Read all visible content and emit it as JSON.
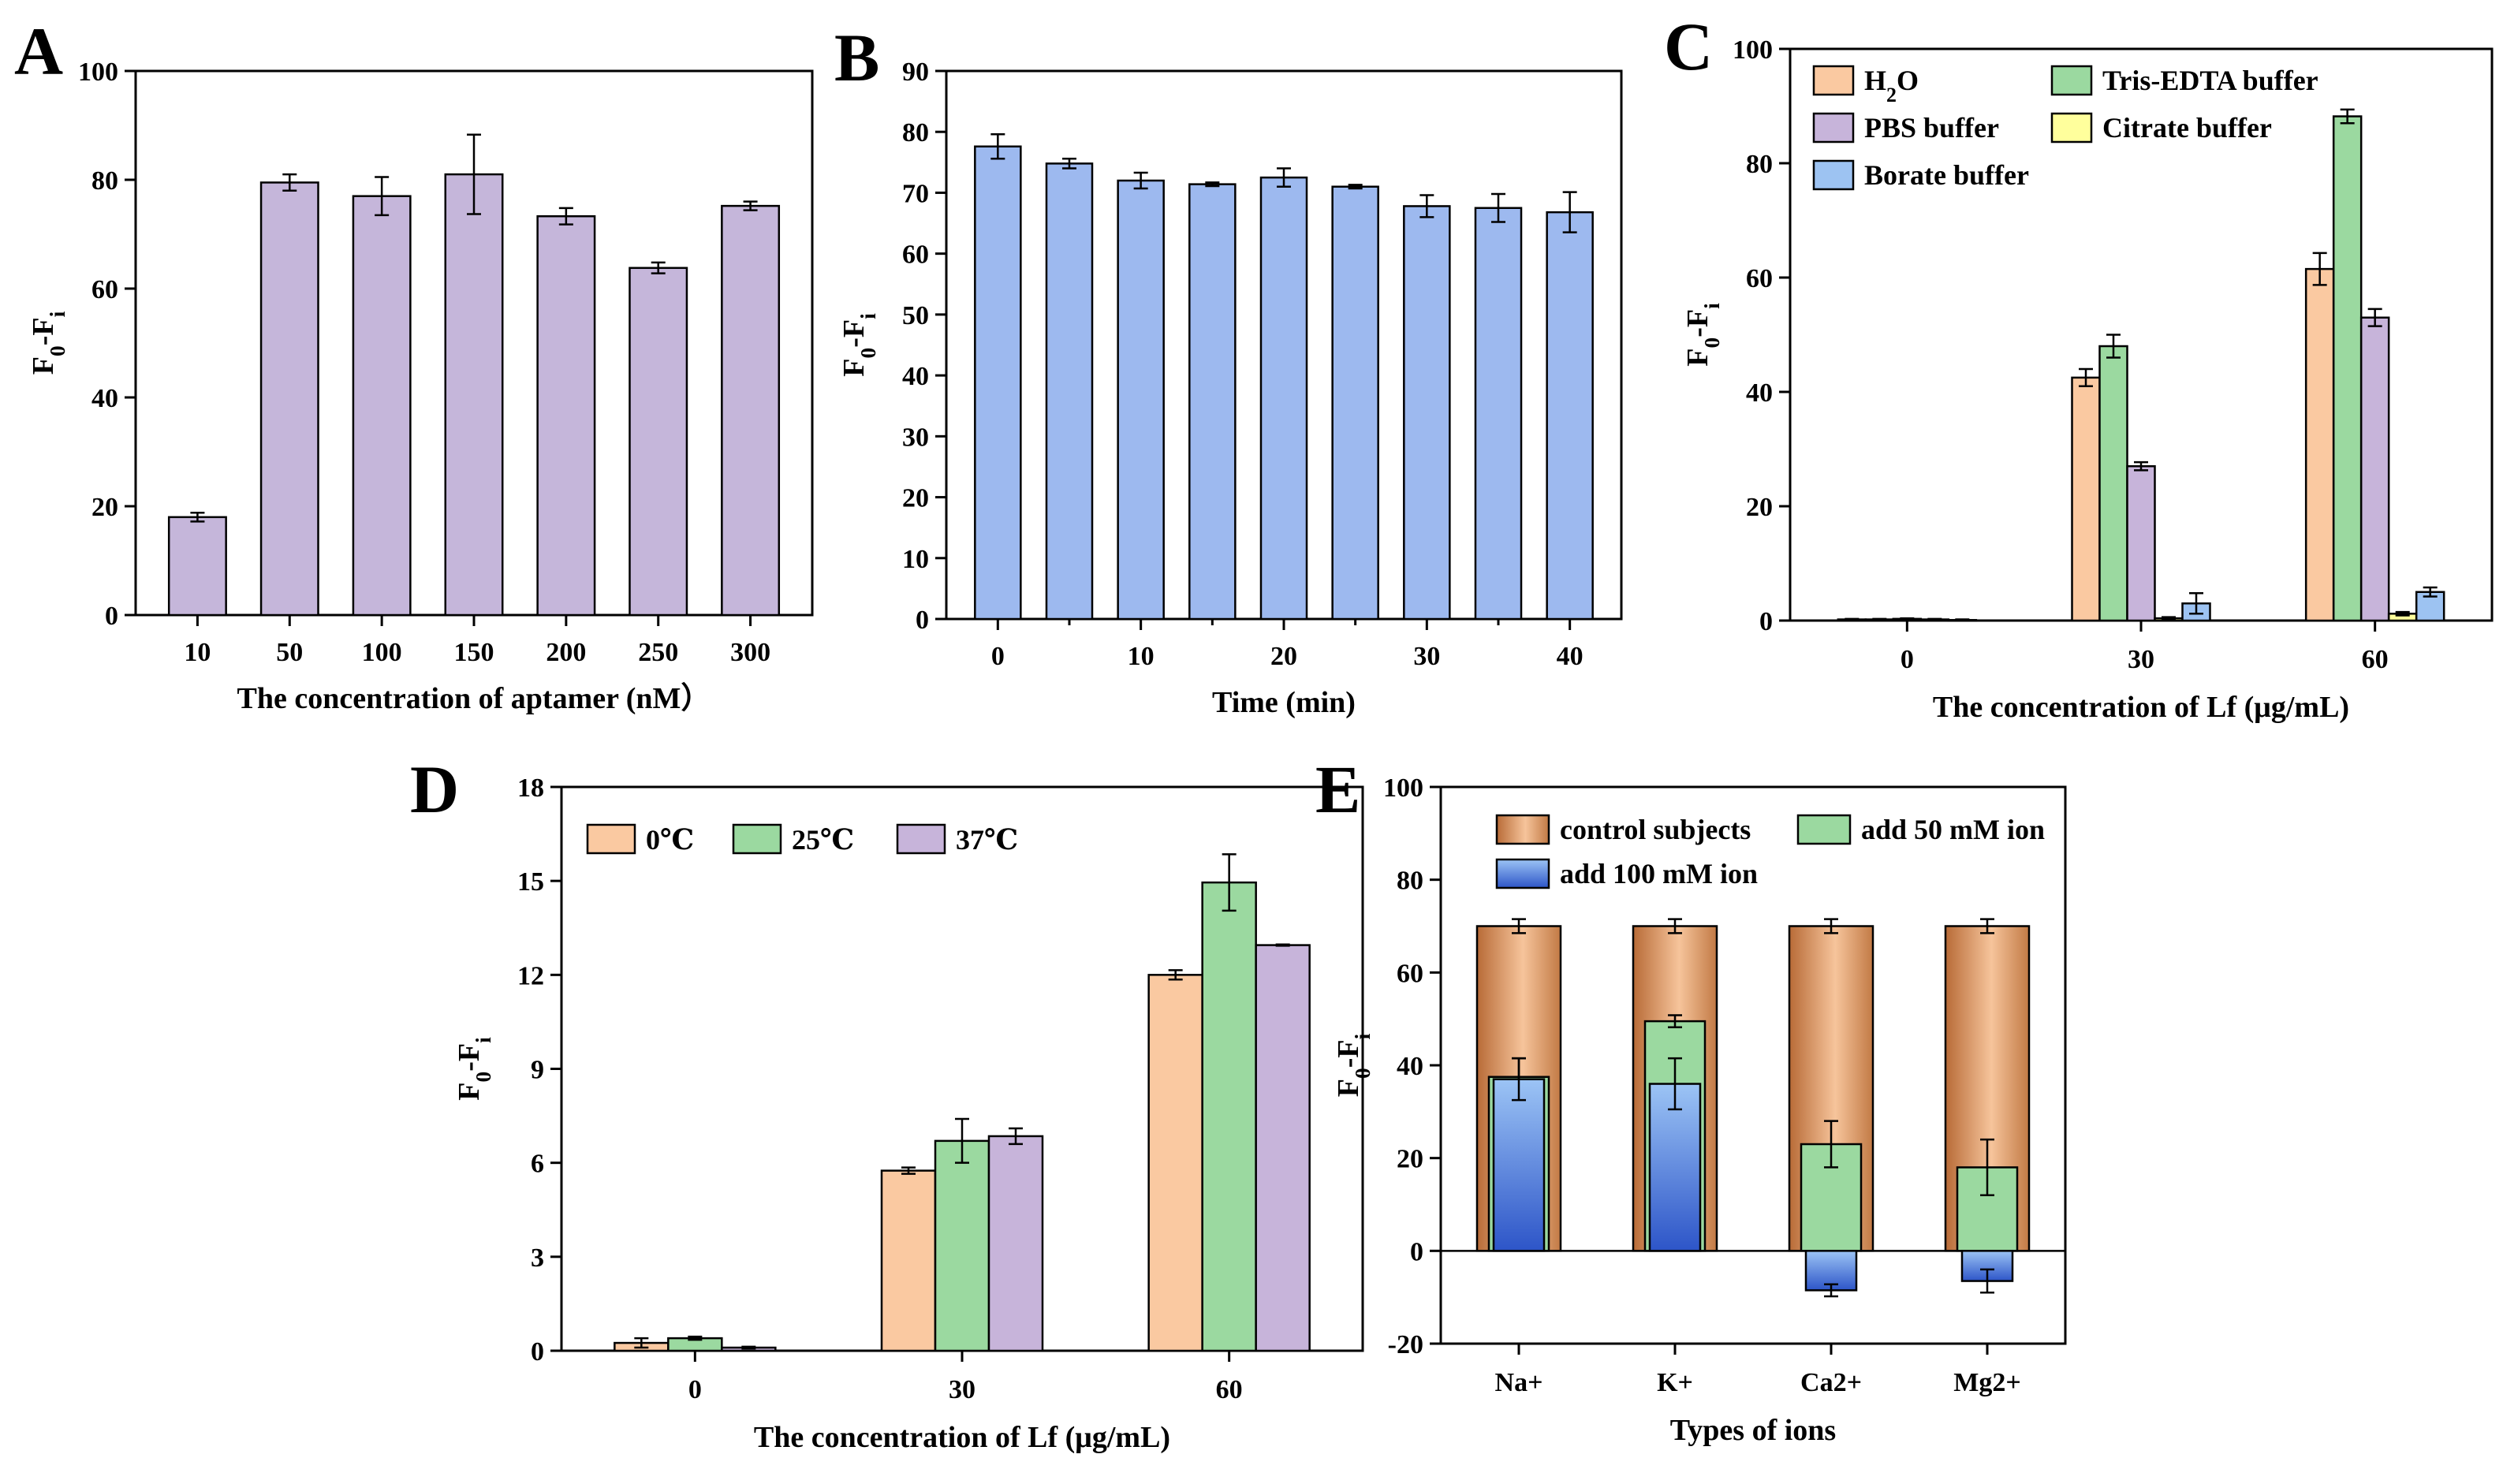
{
  "chart_data": [
    {
      "panel": "A",
      "type": "bar",
      "categories": [
        "10",
        "50",
        "100",
        "150",
        "200",
        "250",
        "300"
      ],
      "series": [
        {
          "name": "aptamer",
          "color": "#c5b6da",
          "values": [
            18,
            79.5,
            77,
            81,
            73.3,
            63.8,
            75.2
          ],
          "errors": [
            0.8,
            1.5,
            3.5,
            7.3,
            1.5,
            1.0,
            0.8
          ]
        }
      ],
      "xlabel": "The concentration of aptamer (nM）",
      "ylabel": "F0-Fi",
      "ylim": [
        0,
        100
      ],
      "yticks": [
        0,
        20,
        40,
        60,
        80,
        100
      ]
    },
    {
      "panel": "B",
      "type": "bar",
      "x": [
        0,
        5,
        10,
        15,
        20,
        25,
        30,
        35,
        40
      ],
      "series": [
        {
          "name": "time",
          "color": "#9db9ef",
          "values": [
            77.6,
            74.8,
            72.0,
            71.4,
            72.5,
            71.0,
            67.8,
            67.5,
            66.8
          ],
          "errors": [
            2.0,
            0.8,
            1.3,
            0.3,
            1.5,
            0.3,
            1.8,
            2.3,
            3.3
          ]
        }
      ],
      "xticks": [
        0,
        10,
        20,
        30,
        40
      ],
      "xlabel": "Time (min)",
      "ylabel": "F0-Fi",
      "ylim": [
        0,
        90
      ],
      "yticks": [
        0,
        10,
        20,
        30,
        40,
        50,
        60,
        70,
        80,
        90
      ]
    },
    {
      "panel": "C",
      "type": "bar",
      "categories": [
        "0",
        "30",
        "60"
      ],
      "series": [
        {
          "name": "H2O",
          "color": "#fac9a1",
          "values": [
            0.2,
            42.5,
            61.5
          ],
          "errors": [
            0.1,
            1.5,
            2.8
          ]
        },
        {
          "name": "Tris-EDTA buffer",
          "color": "#9bd9a0",
          "values": [
            0.2,
            48,
            88.2
          ],
          "errors": [
            0.1,
            2.0,
            1.2
          ]
        },
        {
          "name": "PBS buffer",
          "color": "#c7b4da",
          "values": [
            0.3,
            27,
            53
          ],
          "errors": [
            0.1,
            0.7,
            1.5
          ]
        },
        {
          "name": "Citrate buffer",
          "color": "#ffff9c",
          "values": [
            0.2,
            0.4,
            1.2
          ],
          "errors": [
            0.1,
            0.2,
            0.3
          ]
        },
        {
          "name": "Borate buffer",
          "color": "#9dc3f2",
          "values": [
            0.1,
            3.0,
            5.0
          ],
          "errors": [
            0.1,
            1.8,
            0.8
          ]
        }
      ],
      "legend_rows": [
        [
          "H2O",
          "Tris-EDTA buffer"
        ],
        [
          "PBS buffer",
          "Citrate buffer"
        ],
        [
          "Borate buffer"
        ]
      ],
      "xlabel": "The concentration of Lf (μg/mL)",
      "ylabel": "F0-Fi",
      "ylim": [
        0,
        100
      ],
      "yticks": [
        0,
        20,
        40,
        60,
        80,
        100
      ]
    },
    {
      "panel": "D",
      "type": "bar",
      "categories": [
        "0",
        "30",
        "60"
      ],
      "series": [
        {
          "name": "0℃",
          "color": "#fac9a1",
          "values": [
            0.25,
            5.75,
            12.0
          ],
          "errors": [
            0.15,
            0.1,
            0.15
          ]
        },
        {
          "name": "25℃",
          "color": "#9bd9a0",
          "values": [
            0.4,
            6.7,
            14.95
          ],
          "errors": [
            0.05,
            0.7,
            0.9
          ]
        },
        {
          "name": "37℃",
          "color": "#c7b4da",
          "values": [
            0.1,
            6.85,
            12.95
          ],
          "errors": [
            0.03,
            0.25,
            0.02
          ]
        }
      ],
      "xlabel": "The concentration of Lf (μg/mL)",
      "ylabel": "F0-Fi",
      "ylim": [
        0,
        18
      ],
      "yticks": [
        0,
        3,
        6,
        9,
        12,
        15,
        18
      ]
    },
    {
      "panel": "E",
      "type": "bar",
      "categories": [
        "Na+",
        "K+",
        "Ca2+",
        "Mg2+"
      ],
      "series": [
        {
          "name": "control subjects",
          "color": "#e7a46d",
          "values": [
            70,
            70,
            70,
            70
          ],
          "errors": [
            1.5,
            1.5,
            1.5,
            1.5
          ]
        },
        {
          "name": "add 50 mM ion",
          "color": "#9bd9a0",
          "values": [
            37.5,
            49.5,
            23,
            18
          ],
          "errors": [
            4,
            1.3,
            5,
            6
          ]
        },
        {
          "name": "add 100 mM ion",
          "color": "#4f7fd6",
          "values": [
            37,
            36,
            -8.5,
            -6.5
          ],
          "errors": [
            4.5,
            5.5,
            1.3,
            2.5
          ]
        }
      ],
      "xlabel": "Types of ions",
      "ylabel": "F0-Fi",
      "ylim": [
        -20,
        100
      ],
      "yticks": [
        -20,
        0,
        20,
        40,
        60,
        80,
        100
      ]
    }
  ]
}
